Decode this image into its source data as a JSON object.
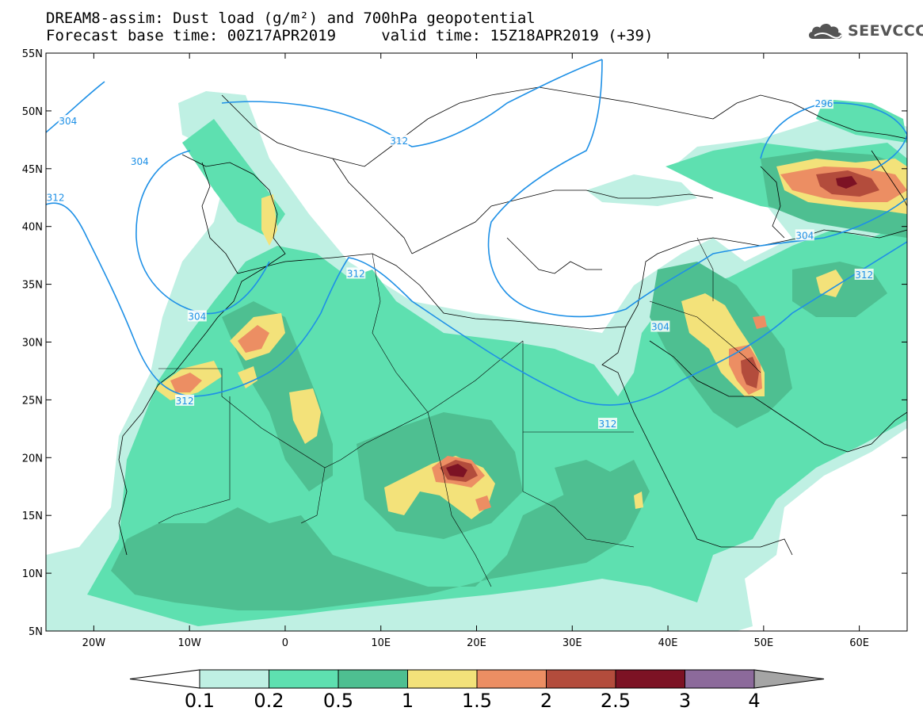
{
  "header": {
    "line1": "DREAM8-assim: Dust load (g/m²) and 700hPa geopotential",
    "line2": "Forecast base time: 00Z17APR2019     valid time: 15Z18APR2019 (+39)"
  },
  "logo": {
    "text": "SEEVCCC",
    "icon": "cloud-icon"
  },
  "map": {
    "projection": "equirectangular",
    "lon_range": [
      -25,
      65
    ],
    "lat_range": [
      5,
      55
    ],
    "lat_ticks": [
      "55N",
      "50N",
      "45N",
      "40N",
      "35N",
      "30N",
      "25N",
      "20N",
      "15N",
      "10N",
      "5N"
    ],
    "lat_tick_values": [
      55,
      50,
      45,
      40,
      35,
      30,
      25,
      20,
      15,
      10,
      5
    ],
    "lon_ticks": [
      "20W",
      "10W",
      "0",
      "10E",
      "20E",
      "30E",
      "40E",
      "50E",
      "60E"
    ],
    "lon_tick_values": [
      -20,
      -10,
      0,
      10,
      20,
      30,
      40,
      50,
      60
    ]
  },
  "geopotential_labels": [
    {
      "text": "304",
      "lon": -22.7,
      "lat": 49.1
    },
    {
      "text": "304",
      "lon": -15.2,
      "lat": 45.6
    },
    {
      "text": "312",
      "lon": -24.0,
      "lat": 42.5
    },
    {
      "text": "312",
      "lon": 11.9,
      "lat": 47.4
    },
    {
      "text": "296",
      "lon": 56.3,
      "lat": 50.6
    },
    {
      "text": "304",
      "lon": -9.2,
      "lat": 32.2
    },
    {
      "text": "312",
      "lon": 7.4,
      "lat": 35.9
    },
    {
      "text": "304",
      "lon": 54.3,
      "lat": 39.2
    },
    {
      "text": "312",
      "lon": 60.5,
      "lat": 35.8
    },
    {
      "text": "304",
      "lon": 39.2,
      "lat": 31.3
    },
    {
      "text": "312",
      "lon": -10.5,
      "lat": 24.9
    },
    {
      "text": "312",
      "lon": 33.7,
      "lat": 22.9
    }
  ],
  "colorbar": {
    "labels": [
      "0.1",
      "0.2",
      "0.5",
      "1",
      "1.5",
      "2",
      "2.5",
      "3",
      "4"
    ],
    "colors": [
      "#ffffff",
      "#bff0e3",
      "#5ee0b0",
      "#4ebf91",
      "#f3e27a",
      "#ec8e63",
      "#b34c3c",
      "#7c1224",
      "#8c6a9b",
      "#a5a5a5"
    ]
  }
}
